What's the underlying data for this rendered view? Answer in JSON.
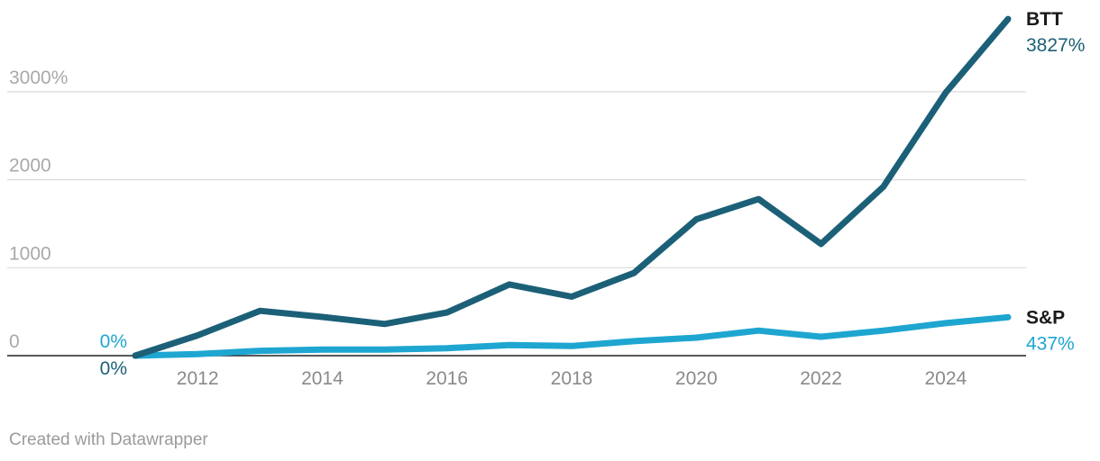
{
  "chart_data": {
    "type": "line",
    "title": "",
    "xlabel": "",
    "ylabel": "",
    "x": [
      2011,
      2012,
      2013,
      2014,
      2015,
      2016,
      2017,
      2018,
      2019,
      2020,
      2021,
      2022,
      2023,
      2024,
      2025
    ],
    "x_ticks": [
      "2012",
      "2014",
      "2016",
      "2018",
      "2020",
      "2022",
      "2024"
    ],
    "y_ticks": [
      "0",
      "1000",
      "2000",
      "3000%"
    ],
    "ylim": [
      0,
      3827
    ],
    "grid": true,
    "series": [
      {
        "name": "BTT",
        "color": "#1c6078",
        "start_label": "0%",
        "end_label": "3827%",
        "values": [
          0,
          230,
          510,
          440,
          360,
          490,
          810,
          670,
          940,
          1550,
          1780,
          1270,
          1920,
          2990,
          3827
        ]
      },
      {
        "name": "S&P",
        "color": "#1ea6d1",
        "start_label": "0%",
        "end_label": "437%",
        "values": [
          0,
          18,
          55,
          70,
          70,
          85,
          120,
          110,
          165,
          205,
          285,
          215,
          285,
          370,
          437
        ]
      }
    ]
  },
  "footer": {
    "credit": "Created with Datawrapper"
  }
}
